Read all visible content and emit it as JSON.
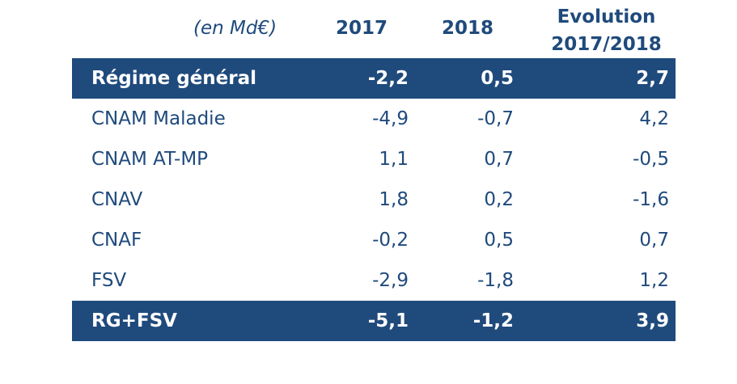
{
  "table": {
    "unit_label": "(en Md€)",
    "col_2017": "2017",
    "col_2018": "2018",
    "col_evolution_line1": "Evolution",
    "col_evolution_line2": "2017/2018",
    "rows": [
      {
        "label": "Régime général",
        "v2017": "-2,2",
        "v2018": "0,5",
        "evolution": "2,7"
      },
      {
        "label": "CNAM Maladie",
        "v2017": "-4,9",
        "v2018": "-0,7",
        "evolution": "4,2"
      },
      {
        "label": "CNAM AT-MP",
        "v2017": "1,1",
        "v2018": "0,7",
        "evolution": "-0,5"
      },
      {
        "label": "CNAV",
        "v2017": "1,8",
        "v2018": "0,2",
        "evolution": "-1,6"
      },
      {
        "label": "CNAF",
        "v2017": "-0,2",
        "v2018": "0,5",
        "evolution": "0,7"
      },
      {
        "label": "FSV",
        "v2017": "-2,9",
        "v2018": "-1,8",
        "evolution": "1,2"
      },
      {
        "label": "RG+FSV",
        "v2017": "-5,1",
        "v2018": "-1,2",
        "evolution": "3,9"
      }
    ]
  },
  "colors": {
    "band": "#1f4a7c",
    "text": "#1f4a7c",
    "band_text": "#ffffff"
  }
}
